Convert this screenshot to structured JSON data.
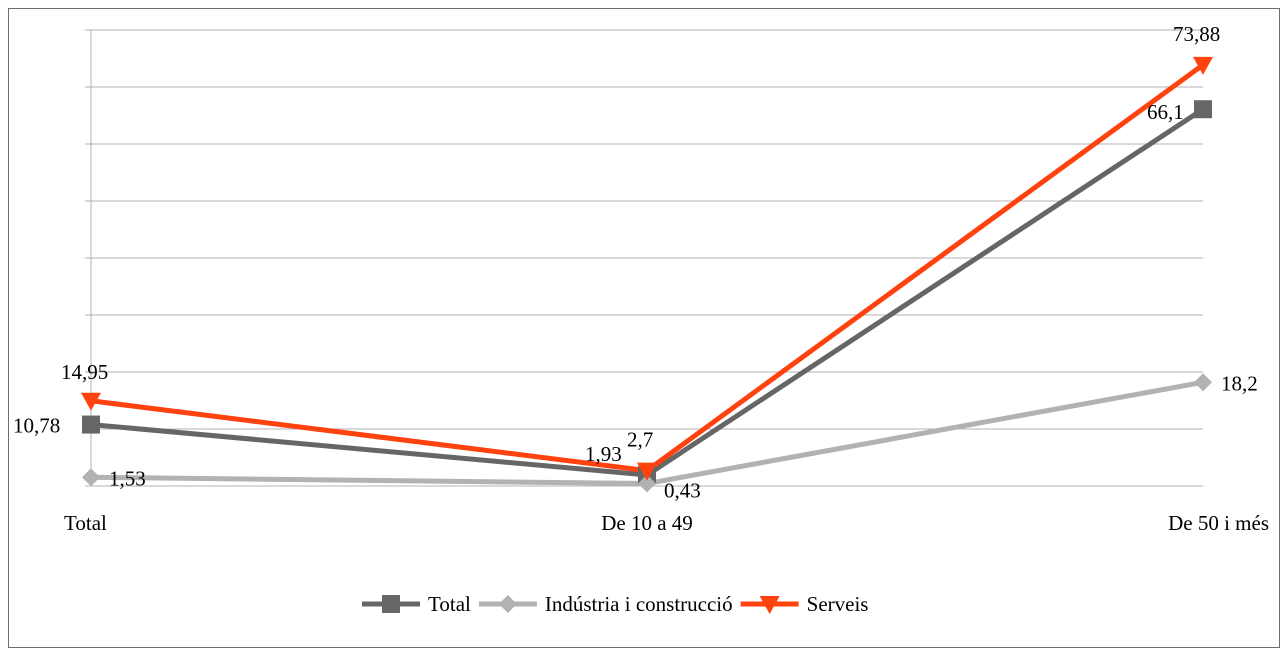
{
  "chart_data": {
    "type": "line",
    "categories": [
      "Total",
      "De 10 a 49",
      "De 50 i més"
    ],
    "series": [
      {
        "name": "Total",
        "values": [
          10.78,
          1.93,
          66.1
        ],
        "labels": [
          "10,78",
          "1,93",
          "66,1"
        ],
        "color": "#666666",
        "marker": "square"
      },
      {
        "name": "Indústria i construcció",
        "values": [
          1.53,
          0.43,
          18.2
        ],
        "labels": [
          "1,53",
          "0,43",
          "18,2"
        ],
        "color": "#b2b2b2",
        "marker": "diamond"
      },
      {
        "name": "Serveis",
        "values": [
          14.95,
          2.7,
          73.88
        ],
        "labels": [
          "14,95",
          "2,7",
          "73,88"
        ],
        "color": "#ff420e",
        "marker": "triangle-down"
      }
    ],
    "ylim": [
      0,
      80
    ],
    "grid": true,
    "legend": "bottom"
  }
}
